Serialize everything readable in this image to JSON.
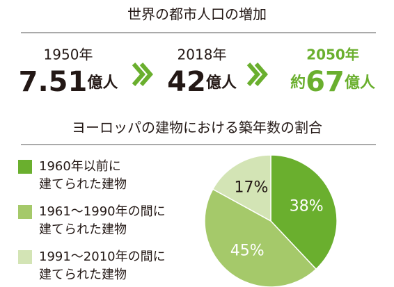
{
  "header": {
    "title": "世界の都市人口の増加"
  },
  "population": [
    {
      "year": "1950年",
      "prefix": "",
      "number": "7.51",
      "unit": "億人"
    },
    {
      "year": "2018年",
      "prefix": "",
      "number": "42",
      "unit": "億人"
    },
    {
      "year": "2050年",
      "prefix": "約",
      "number": "67",
      "unit": "億人"
    }
  ],
  "chart_data": {
    "type": "pie",
    "title": "ヨーロッパの建物における築年数の割合",
    "categories": [
      "1960年以前に\n建てられた建物",
      "1961〜1990年の間に\n建てられた建物",
      "1991〜2010年の間に\n建てられた建物"
    ],
    "values": [
      38,
      45,
      17
    ],
    "value_labels": [
      "38%",
      "45%",
      "17%"
    ],
    "colors": [
      "#6aaf2e",
      "#a5c96a",
      "#d3e4b5"
    ]
  }
}
